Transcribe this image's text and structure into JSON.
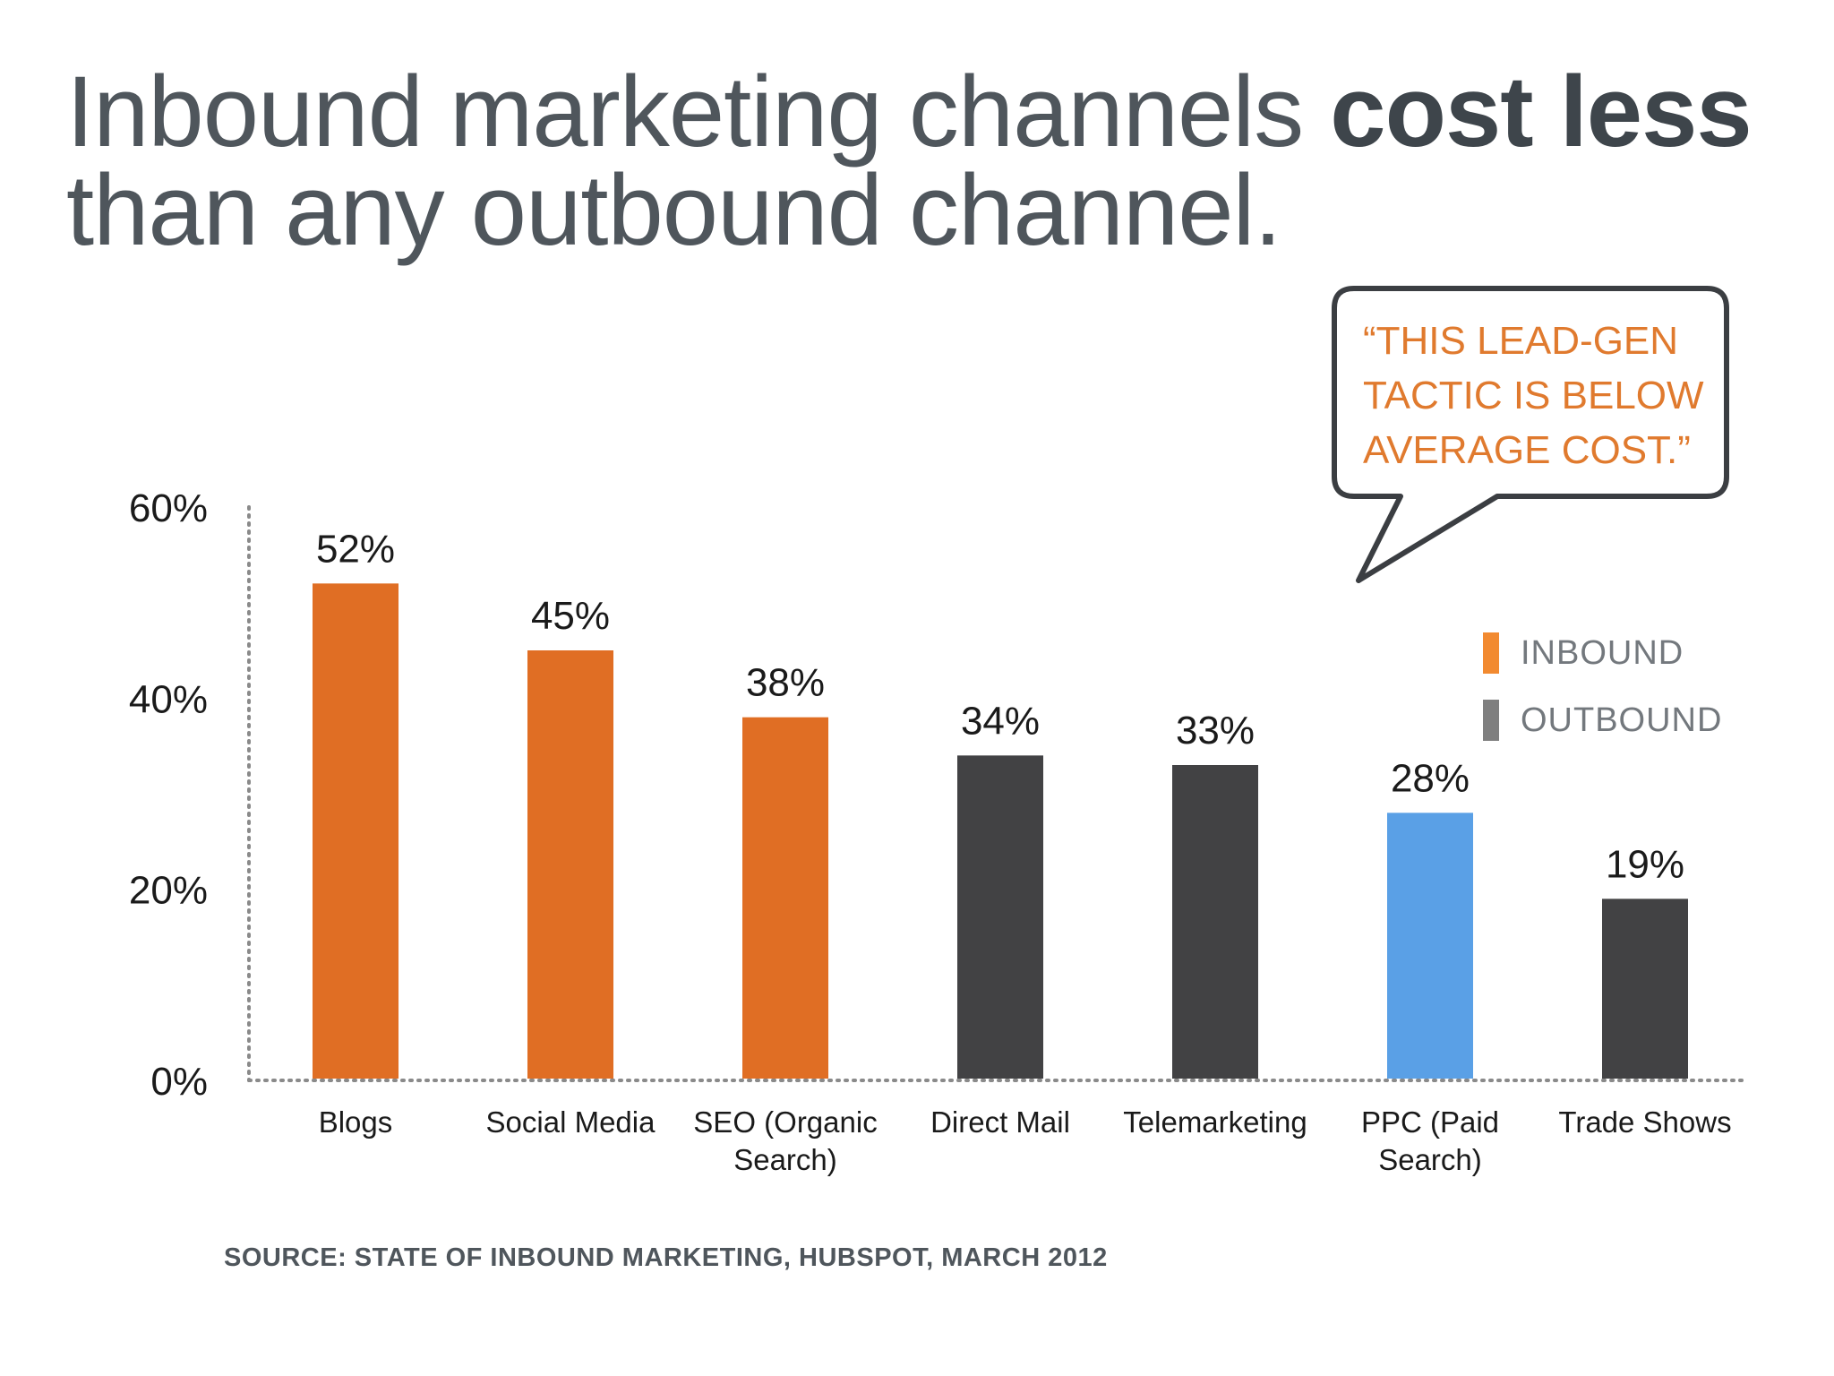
{
  "header": {
    "title_part1": "Inbound marketing channels ",
    "title_bold": "cost less",
    "title_line2": "than any outbound channel."
  },
  "callout": {
    "lines": [
      "“THIS LEAD-GEN",
      "TACTIC IS BELOW",
      "AVERAGE COST.”"
    ]
  },
  "legend": [
    {
      "label": "INBOUND",
      "color": "#f28a30"
    },
    {
      "label": "OUTBOUND",
      "color": "#7f7f7f"
    }
  ],
  "footer": {
    "source": "SOURCE: STATE OF INBOUND MARKETING, HUBSPOT, MARCH 2012"
  },
  "chart_data": {
    "type": "bar",
    "categories": [
      [
        "Blogs"
      ],
      [
        "Social Media"
      ],
      [
        "SEO (Organic",
        "Search)"
      ],
      [
        "Direct Mail"
      ],
      [
        "Telemarketing"
      ],
      [
        "PPC (Paid",
        "Search)"
      ],
      [
        "Trade Shows"
      ]
    ],
    "values": [
      52,
      45,
      38,
      34,
      33,
      28,
      19
    ],
    "value_labels": [
      "52%",
      "45%",
      "38%",
      "34%",
      "33%",
      "28%",
      "19%"
    ],
    "bar_colors": [
      "#e06e24",
      "#e06e24",
      "#e06e24",
      "#424244",
      "#424244",
      "#5aa0e6",
      "#424244"
    ],
    "yticks": [
      0,
      20,
      40,
      60
    ],
    "ytick_labels": [
      "0%",
      "20%",
      "40%",
      "60%"
    ],
    "ylim": [
      0,
      60
    ],
    "axis_style": "dotted",
    "legend_position": "right"
  }
}
